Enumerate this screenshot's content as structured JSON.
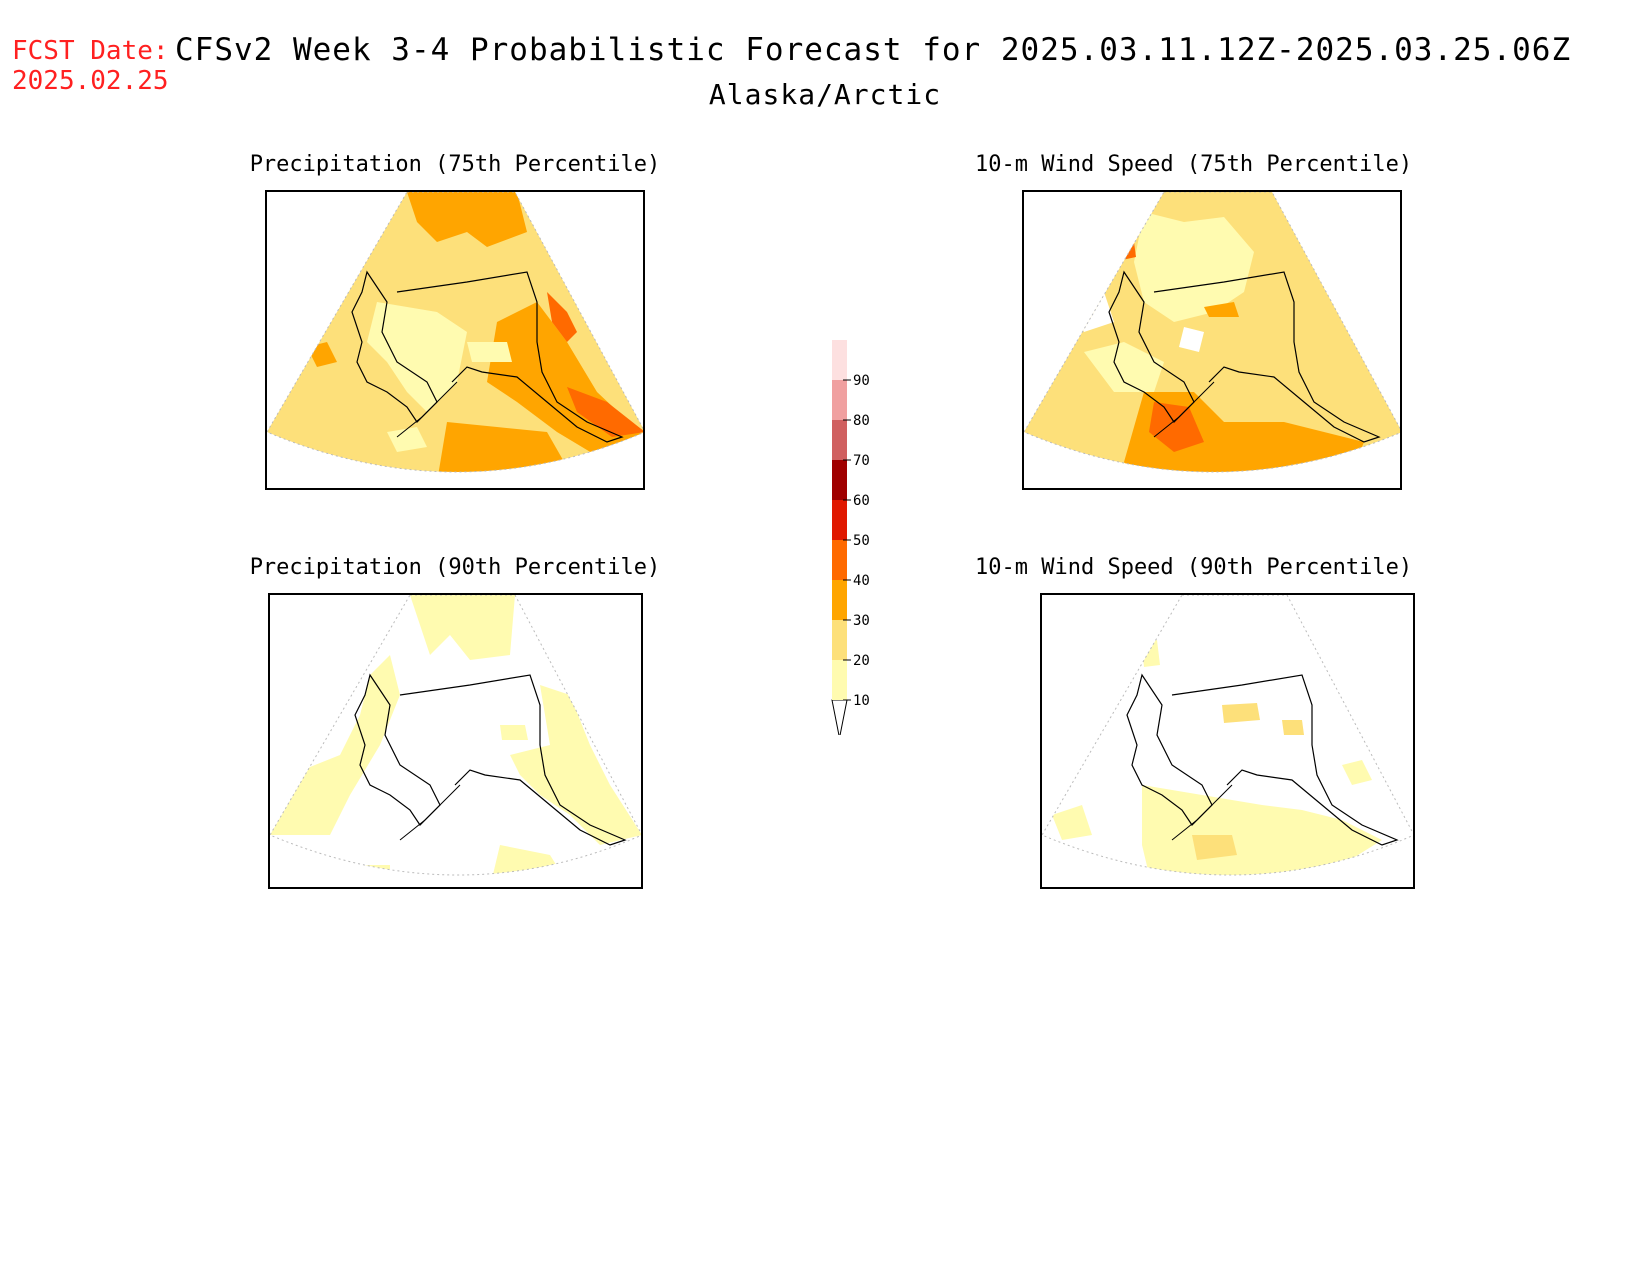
{
  "header": {
    "fcst_label": "FCST Date:",
    "fcst_date": "2025.02.25",
    "title": "CFSv2 Week 3-4 Probabilistic Forecast for 2025.03.11.12Z-2025.03.25.06Z",
    "subtitle": "Alaska/Arctic"
  },
  "panels": [
    {
      "title": "Precipitation (75th Percentile)"
    },
    {
      "title": "10-m Wind Speed (75th Percentile)"
    },
    {
      "title": "Precipitation (90th Percentile)"
    },
    {
      "title": "10-m Wind Speed (90th Percentile)"
    }
  ],
  "legend": {
    "levels": [
      "10",
      "20",
      "30",
      "40",
      "50",
      "60",
      "70",
      "80",
      "90"
    ],
    "colors": [
      "#fffbb0",
      "#fde07a",
      "#ffa500",
      "#ff6a00",
      "#e01800",
      "#a00000",
      "#d06060",
      "#f0a0a0",
      "#fde0e0"
    ]
  }
}
